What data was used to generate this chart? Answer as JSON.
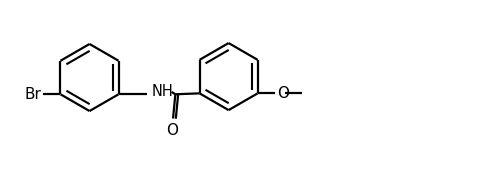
{
  "background_color": "#ffffff",
  "line_color": "#000000",
  "line_width": 1.6,
  "font_size": 11,
  "figsize": [
    4.91,
    1.69
  ],
  "dpi": 100,
  "xlim": [
    0,
    10
  ],
  "ylim": [
    -1.8,
    1.8
  ]
}
